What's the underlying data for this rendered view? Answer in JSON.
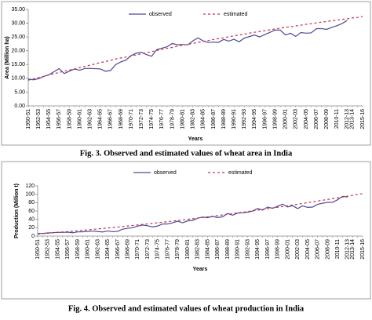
{
  "chart_data": [
    {
      "type": "line",
      "caption": "Fig. 3. Observed and estimated values of wheat area in India",
      "x_label": "Years",
      "y_label": "Area (Million ha)",
      "legend": "top",
      "grid": false,
      "categories": [
        "1950-51",
        null,
        "1952-53",
        null,
        "1954-55",
        null,
        "1956-57",
        null,
        "1958-59",
        null,
        "1960-61",
        null,
        "1962-63",
        null,
        "1964-65",
        null,
        "1966-67",
        null,
        "1968-69",
        null,
        "1970-71",
        null,
        "1972-73",
        null,
        "1974-75",
        null,
        "1976-77",
        null,
        "1978-79",
        null,
        "1980-81",
        null,
        "1982-83",
        null,
        "1984-85",
        null,
        "1986-87",
        null,
        "1988-89",
        null,
        "1990-91",
        null,
        "1992-93",
        null,
        "1994-95",
        null,
        "1996-97",
        null,
        "1998-99",
        null,
        "2000-01",
        null,
        "2002-03",
        null,
        "2004-05",
        null,
        "2006-07",
        null,
        "2008-09",
        null,
        "2010-11",
        null,
        "2012-13",
        "2013-14",
        null,
        "2015-16"
      ],
      "ylim": [
        0,
        35
      ],
      "yticks": [
        {
          "value": 0,
          "label": "0.00"
        },
        {
          "value": 5,
          "label": "5.00"
        },
        {
          "value": 10,
          "label": "10.00"
        },
        {
          "value": 15,
          "label": "15.00"
        },
        {
          "value": 20,
          "label": "20.00"
        },
        {
          "value": 25,
          "label": "25.00"
        },
        {
          "value": 30,
          "label": "30.00"
        },
        {
          "value": 35,
          "label": "35.00"
        }
      ],
      "series": [
        {
          "name": "observed",
          "color": "#4b4a96",
          "dash": false,
          "values": [
            9.75,
            9.47,
            9.83,
            10.7,
            11.26,
            12.37,
            13.52,
            11.73,
            12.62,
            13.38,
            12.93,
            13.57,
            13.59,
            13.5,
            13.42,
            12.57,
            12.84,
            14.99,
            15.96,
            16.63,
            18.24,
            19.14,
            19.46,
            18.58,
            18.01,
            20.45,
            20.92,
            21.46,
            22.64,
            22.17,
            22.28,
            22.14,
            23.57,
            24.67,
            23.56,
            23.0,
            23.13,
            23.06,
            24.11,
            23.5,
            24.17,
            23.26,
            24.59,
            25.15,
            25.7,
            25.01,
            25.89,
            26.7,
            27.52,
            27.49,
            25.73,
            26.34,
            25.2,
            26.6,
            26.38,
            26.48,
            27.99,
            28.04,
            27.75,
            28.46,
            29.07,
            29.86,
            31.0,
            null,
            null,
            null
          ]
        },
        {
          "name": "estimated",
          "color": "#c0304a",
          "dash": true,
          "values": [
            9.3,
            9.8,
            10.3,
            10.7,
            11.2,
            11.7,
            12.1,
            12.6,
            13.0,
            13.4,
            13.9,
            14.3,
            14.8,
            15.2,
            15.7,
            16.1,
            16.5,
            17.0,
            17.4,
            17.7,
            18.1,
            18.5,
            18.9,
            19.3,
            19.7,
            20.1,
            20.5,
            20.9,
            21.2,
            21.6,
            22.0,
            22.3,
            22.7,
            23.0,
            23.4,
            23.7,
            24.1,
            24.4,
            24.7,
            25.1,
            25.4,
            25.7,
            26.0,
            26.4,
            26.7,
            27.0,
            27.3,
            27.6,
            27.9,
            28.2,
            28.5,
            28.7,
            29.0,
            29.3,
            29.6,
            29.8,
            30.1,
            30.4,
            30.6,
            30.9,
            31.1,
            31.4,
            31.6,
            31.9,
            32.1,
            32.4
          ]
        }
      ]
    },
    {
      "type": "line",
      "caption": "Fig. 4. Observed and estimated values of wheat production in India",
      "x_label": "Years",
      "y_label": "Production (Million t)",
      "legend": "top",
      "grid": false,
      "categories": [
        "1950-51",
        null,
        "1952-53",
        null,
        "1954-55",
        null,
        "1956-57",
        null,
        "1958-59",
        null,
        "1960-61",
        null,
        "1962-63",
        null,
        "1964-65",
        null,
        "1966-67",
        null,
        "1968-69",
        null,
        "1970-71",
        null,
        "1972-73",
        null,
        "1974-75",
        null,
        "1976-77",
        null,
        "1978-79",
        null,
        "1980-81",
        null,
        "1982-83",
        null,
        "1984-85",
        null,
        "1986-87",
        null,
        "1988-89",
        null,
        "1990-91",
        null,
        "1992-93",
        null,
        "1994-95",
        null,
        "1996-97",
        null,
        "1998-99",
        null,
        "2000-01",
        null,
        "2002-03",
        null,
        "2004-05",
        null,
        "2006-07",
        null,
        "2008-09",
        null,
        "2010-11",
        null,
        "2012-13",
        "2013-14",
        null,
        "2015-16"
      ],
      "ylim": [
        0,
        120
      ],
      "yticks": [
        0,
        20,
        40,
        60,
        80,
        100,
        120
      ],
      "series": [
        {
          "name": "observed",
          "color": "#4b4a96",
          "dash": false,
          "values": [
            6.46,
            6.18,
            7.5,
            8.02,
            9.04,
            8.76,
            9.4,
            7.99,
            9.96,
            10.32,
            11.0,
            12.07,
            10.78,
            9.85,
            12.26,
            10.4,
            11.39,
            16.54,
            18.65,
            20.09,
            23.83,
            26.41,
            24.74,
            21.78,
            24.1,
            28.84,
            29.01,
            31.75,
            35.51,
            31.83,
            36.31,
            37.45,
            42.79,
            45.48,
            44.07,
            47.05,
            44.32,
            46.17,
            54.11,
            49.85,
            55.14,
            55.69,
            57.21,
            59.84,
            65.77,
            62.1,
            69.35,
            66.35,
            71.29,
            76.37,
            69.68,
            72.77,
            65.76,
            72.16,
            68.64,
            69.35,
            75.81,
            78.57,
            80.68,
            80.8,
            86.87,
            94.88,
            93.5,
            null,
            null,
            null
          ]
        },
        {
          "name": "estimated",
          "color": "#c0304a",
          "dash": true,
          "values": [
            5.0,
            5.9,
            6.8,
            7.8,
            8.7,
            9.7,
            10.7,
            11.7,
            12.8,
            13.8,
            14.9,
            16.0,
            17.1,
            18.2,
            19.4,
            20.5,
            21.7,
            22.9,
            24.1,
            25.4,
            26.6,
            27.9,
            29.2,
            30.5,
            31.8,
            33.1,
            34.5,
            35.9,
            37.3,
            38.7,
            40.1,
            41.5,
            43.0,
            44.5,
            46.0,
            47.5,
            49.1,
            50.6,
            52.2,
            53.8,
            55.4,
            57.0,
            58.7,
            60.3,
            62.0,
            63.7,
            65.4,
            67.2,
            68.9,
            70.7,
            72.5,
            74.3,
            76.1,
            78.0,
            79.9,
            81.7,
            83.7,
            85.6,
            87.5,
            89.5,
            91.4,
            93.4,
            95.4,
            97.4,
            99.5,
            101.5
          ]
        }
      ]
    }
  ]
}
